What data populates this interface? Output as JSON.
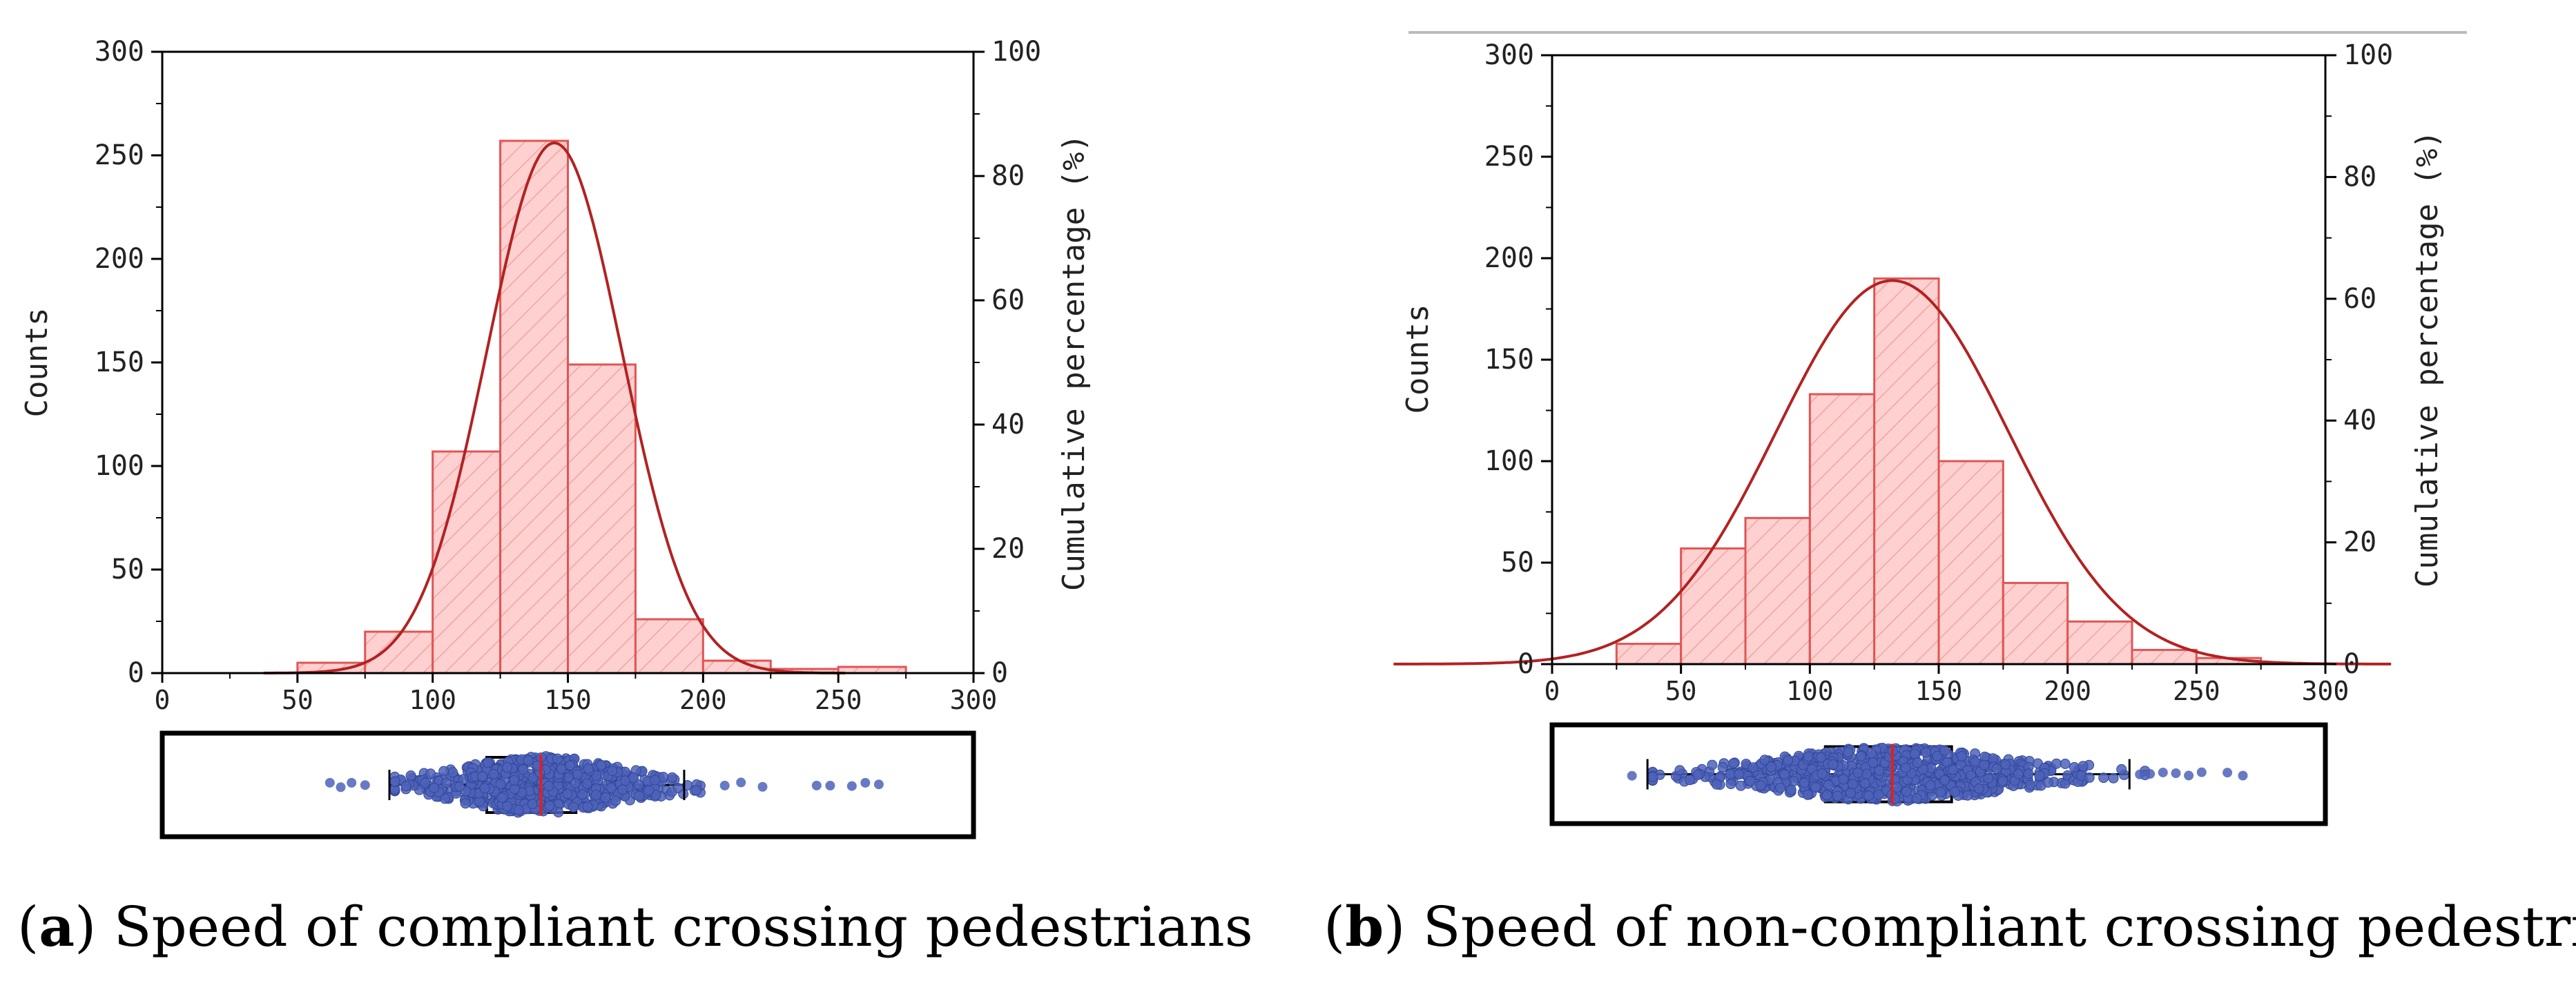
{
  "chart_data": [
    {
      "type": "bar",
      "panel": "a",
      "caption": {
        "letter": "a",
        "text": " Speed of compliant crossing pedestrians"
      },
      "bin_edges": [
        50,
        75,
        100,
        125,
        150,
        175,
        200,
        225,
        250,
        275
      ],
      "values": [
        5,
        20,
        107,
        257,
        149,
        26,
        6,
        2,
        3
      ],
      "normal_fit": {
        "peak_x": 145,
        "peak_y": 256,
        "sd": 25
      },
      "xlim": [
        0,
        300
      ],
      "ylim": [
        0,
        300
      ],
      "y2lim": [
        0,
        100
      ],
      "x_ticks": [
        "0",
        "50",
        "100",
        "150",
        "200",
        "250",
        "300"
      ],
      "y_ticks": [
        "0",
        "50",
        "100",
        "150",
        "200",
        "250",
        "300"
      ],
      "y2_ticks": [
        "0",
        "20",
        "40",
        "60",
        "80",
        "100"
      ],
      "ylabel": "Counts",
      "y2label": "Cumulative percentage (%)",
      "boxplot": {
        "whisker_low": 84,
        "q1": 120,
        "median": 140,
        "q3": 153,
        "whisker_high": 193,
        "outliers": [
          62,
          66,
          70,
          75,
          208,
          214,
          222,
          242,
          247,
          255,
          260,
          265
        ]
      },
      "colors": {
        "bar_fill": "#ffd0d0",
        "bar_edge": "#e05555",
        "curve": "#b22222",
        "dot": "#4d63b8",
        "median": "#e02020"
      }
    },
    {
      "type": "bar",
      "panel": "b",
      "caption": {
        "letter": "b",
        "text": " Speed of non-compliant crossing pedestrians"
      },
      "bin_edges": [
        25,
        50,
        75,
        100,
        125,
        150,
        175,
        200,
        225,
        250,
        275
      ],
      "values": [
        10,
        57,
        72,
        133,
        190,
        100,
        40,
        21,
        7,
        3
      ],
      "normal_fit": {
        "peak_x": 132,
        "peak_y": 189,
        "sd": 45
      },
      "xlim": [
        0,
        300
      ],
      "ylim": [
        0,
        300
      ],
      "y2lim": [
        0,
        100
      ],
      "x_ticks": [
        "0",
        "50",
        "100",
        "150",
        "200",
        "250",
        "300"
      ],
      "y_ticks": [
        "0",
        "50",
        "100",
        "150",
        "200",
        "250",
        "300"
      ],
      "y2_ticks": [
        "0",
        "20",
        "40",
        "60",
        "80",
        "100"
      ],
      "ylabel": "Counts",
      "y2label": "Cumulative percentage (%)",
      "boxplot": {
        "whisker_low": 37,
        "q1": 106,
        "median": 132,
        "q3": 155,
        "whisker_high": 224,
        "outliers": [
          31,
          228,
          232,
          237,
          242,
          247,
          252,
          262,
          268
        ]
      },
      "colors": {
        "bar_fill": "#ffd0d0",
        "bar_edge": "#e05555",
        "curve": "#b22222",
        "dot": "#4d63b8",
        "median": "#e02020"
      }
    }
  ]
}
